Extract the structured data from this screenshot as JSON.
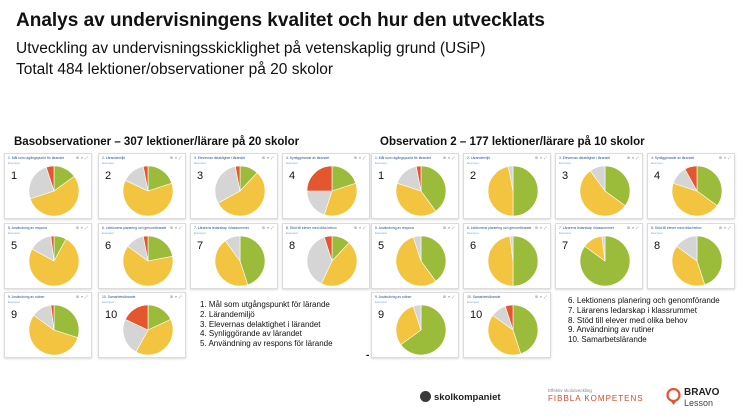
{
  "header": {
    "title": "Analys av undervisningens kvalitet och hur den utvecklats",
    "subtitle1": "Utveckling av undervisningsskicklighet på vetenskaplig grund (USiP)",
    "subtitle2": "Totalt 484 lektioner/observationer på 20 skolor"
  },
  "sections": {
    "left": "Basobservationer – 307 lektioner/lärare på 20 skolor",
    "right": "Observation 2 – 177 lektioner/lärare på 10 skolor"
  },
  "colors": {
    "yellow": "#f3c43f",
    "green": "#9bbb3b",
    "red": "#e4572e",
    "gray": "#d5d5d5"
  },
  "legend_left": [
    "1. Mål som utgångspunkt för lärande",
    "2. Lärandemiljö",
    "3. Elevernas delaktighet i lärandet",
    "4. Synliggörande av lärandet",
    "5. Användning av respons för lärande"
  ],
  "legend_right": [
    "6. Lektionens planering och genomförande",
    "7. Lärarens ledarskap i klassrummet",
    "8. Stöd till elever med olika behov",
    "9. Användning av rutiner",
    "10. Samarbetslärande"
  ],
  "card_icons": "⊞ ≡ ⤢",
  "charts_left": [
    {
      "num": "1",
      "header": "1. Mål som utgångspunkt för lärandet",
      "sub": "Exempel",
      "slices": {
        "green": 0.15,
        "yellow": 0.55,
        "gray": 0.25,
        "red": 0.05
      }
    },
    {
      "num": "2",
      "header": "2. Lärandemiljö",
      "sub": "Exempel",
      "slices": {
        "green": 0.2,
        "yellow": 0.62,
        "gray": 0.15,
        "red": 0.03
      }
    },
    {
      "num": "3",
      "header": "3. Elevernas delaktighet i lärandet",
      "sub": "Exempel",
      "slices": {
        "green": 0.12,
        "yellow": 0.55,
        "gray": 0.3,
        "red": 0.03
      }
    },
    {
      "num": "4",
      "header": "4. Synliggörande av lärandet",
      "sub": "Exempel",
      "slices": {
        "green": 0.2,
        "yellow": 0.35,
        "gray": 0.2,
        "red": 0.25
      }
    },
    {
      "num": "5",
      "header": "5. Användning av respons",
      "sub": "Exempel",
      "slices": {
        "green": 0.08,
        "yellow": 0.75,
        "gray": 0.15,
        "red": 0.02
      }
    },
    {
      "num": "6",
      "header": "6. Lektionens planering och genomförande",
      "sub": "Exempel",
      "slices": {
        "green": 0.22,
        "yellow": 0.63,
        "gray": 0.12,
        "red": 0.03
      }
    },
    {
      "num": "7",
      "header": "7. Lärarens ledarskap i klassrummet",
      "sub": "Exempel",
      "slices": {
        "green": 0.45,
        "yellow": 0.45,
        "gray": 0.1,
        "red": 0.0
      }
    },
    {
      "num": "8",
      "header": "8. Stöd till elever med olika behov",
      "sub": "Exempel",
      "slices": {
        "green": 0.12,
        "yellow": 0.45,
        "gray": 0.38,
        "red": 0.05
      }
    },
    {
      "num": "9",
      "header": "9. Användning av rutiner",
      "sub": "Exempel",
      "slices": {
        "green": 0.3,
        "yellow": 0.55,
        "gray": 0.13,
        "red": 0.02
      }
    },
    {
      "num": "10",
      "header": "10. Samarbetslärande",
      "sub": "Exempel",
      "slices": {
        "green": 0.18,
        "yellow": 0.4,
        "gray": 0.24,
        "red": 0.18
      }
    }
  ],
  "charts_right": [
    {
      "num": "1",
      "header": "1. Mål som utgångspunkt för lärandet",
      "sub": "Exempel",
      "slices": {
        "green": 0.4,
        "yellow": 0.4,
        "gray": 0.17,
        "red": 0.03
      }
    },
    {
      "num": "2",
      "header": "2. Lärandemiljö",
      "sub": "Exempel",
      "slices": {
        "green": 0.5,
        "yellow": 0.47,
        "gray": 0.03,
        "red": 0.0
      }
    },
    {
      "num": "3",
      "header": "3. Elevernas delaktighet i lärandet",
      "sub": "Exempel",
      "slices": {
        "green": 0.35,
        "yellow": 0.55,
        "gray": 0.1,
        "red": 0.0
      }
    },
    {
      "num": "4",
      "header": "4. Synliggörande av lärandet",
      "sub": "Exempel",
      "slices": {
        "green": 0.35,
        "yellow": 0.45,
        "gray": 0.12,
        "red": 0.08
      }
    },
    {
      "num": "5",
      "header": "5. Användning av respons",
      "sub": "Exempel",
      "slices": {
        "green": 0.4,
        "yellow": 0.55,
        "gray": 0.05,
        "red": 0.0
      }
    },
    {
      "num": "6",
      "header": "6. Lektionens planering och genomförande",
      "sub": "Exempel",
      "slices": {
        "green": 0.5,
        "yellow": 0.48,
        "gray": 0.02,
        "red": 0.0
      }
    },
    {
      "num": "7",
      "header": "7. Lärarens ledarskap i klassrummet",
      "sub": "Exempel",
      "slices": {
        "green": 0.85,
        "yellow": 0.13,
        "gray": 0.02,
        "red": 0.0
      }
    },
    {
      "num": "8",
      "header": "8. Stöd till elever med olika behov",
      "sub": "Exempel",
      "slices": {
        "green": 0.45,
        "yellow": 0.4,
        "gray": 0.15,
        "red": 0.0
      }
    },
    {
      "num": "9",
      "header": "9. Användning av rutiner",
      "sub": "Exempel",
      "slices": {
        "green": 0.65,
        "yellow": 0.3,
        "gray": 0.05,
        "red": 0.0
      }
    },
    {
      "num": "10",
      "header": "10. Samarbetslärande",
      "sub": "Exempel",
      "slices": {
        "green": 0.45,
        "yellow": 0.4,
        "gray": 0.1,
        "red": 0.05
      }
    }
  ],
  "logos": {
    "skolkompaniet": "skolkompaniet",
    "fibbla_small": "Effektiv skolutveckling",
    "fibbla": "FIBBLA KOMPETENS",
    "bravo1": "BRAVO",
    "bravo2": "Lesson"
  }
}
